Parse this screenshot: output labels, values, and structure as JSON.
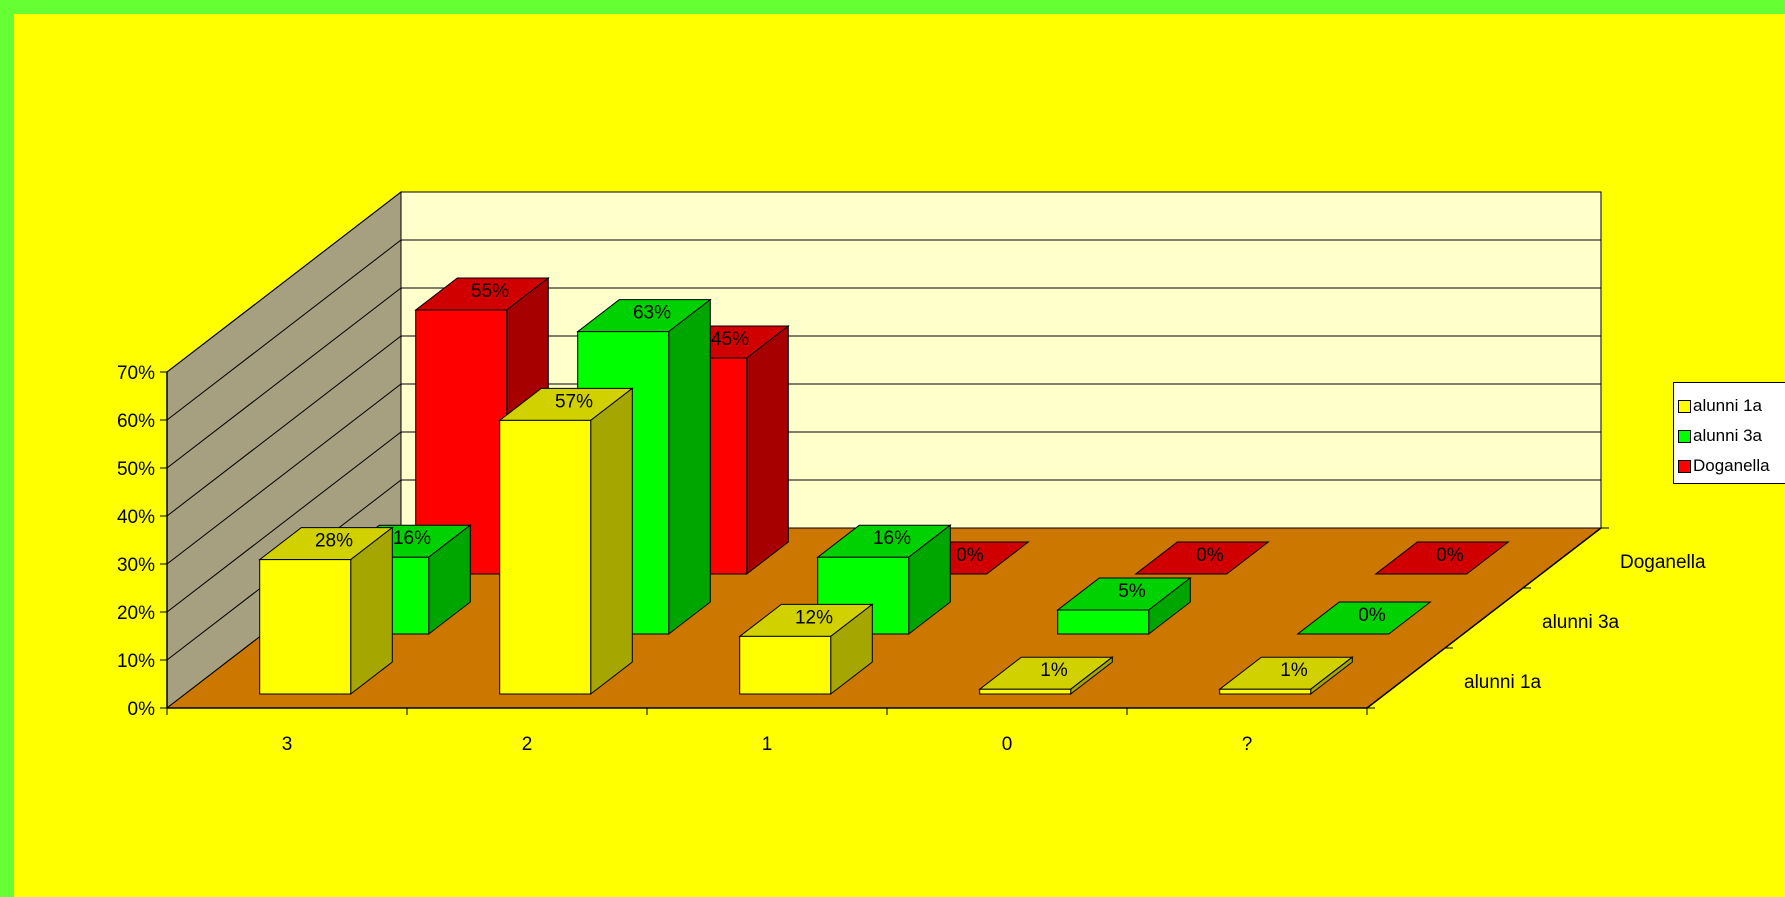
{
  "chart_data": {
    "type": "bar",
    "style": "3d-clustered",
    "categories": [
      "3",
      "2",
      "1",
      "0",
      "?"
    ],
    "series": [
      {
        "name": "alunni 1a",
        "values": [
          28,
          57,
          12,
          1,
          1
        ],
        "labels": [
          "28%",
          "57%",
          "12%",
          "1%",
          "1%"
        ],
        "color": "#ffff00"
      },
      {
        "name": "alunni 3a",
        "values": [
          16,
          63,
          16,
          5,
          0
        ],
        "labels": [
          "16%",
          "63%",
          "16%",
          "5%",
          "0%"
        ],
        "color": "#00ff00"
      },
      {
        "name": "Doganella",
        "values": [
          55,
          45,
          0,
          0,
          0
        ],
        "labels": [
          "55%",
          "45%",
          "0%",
          "0%",
          "0%"
        ],
        "color": "#ff0000"
      }
    ],
    "y_ticks": [
      "0%",
      "10%",
      "20%",
      "30%",
      "40%",
      "50%",
      "60%",
      "70%"
    ],
    "ylim": [
      0,
      70
    ],
    "legend_position": "right",
    "colors": {
      "background": "#ffff00",
      "border": "#66ff33",
      "floor": "#cc7700",
      "back_wall": "#ffffcc",
      "side_wall": "#a6a080"
    }
  }
}
